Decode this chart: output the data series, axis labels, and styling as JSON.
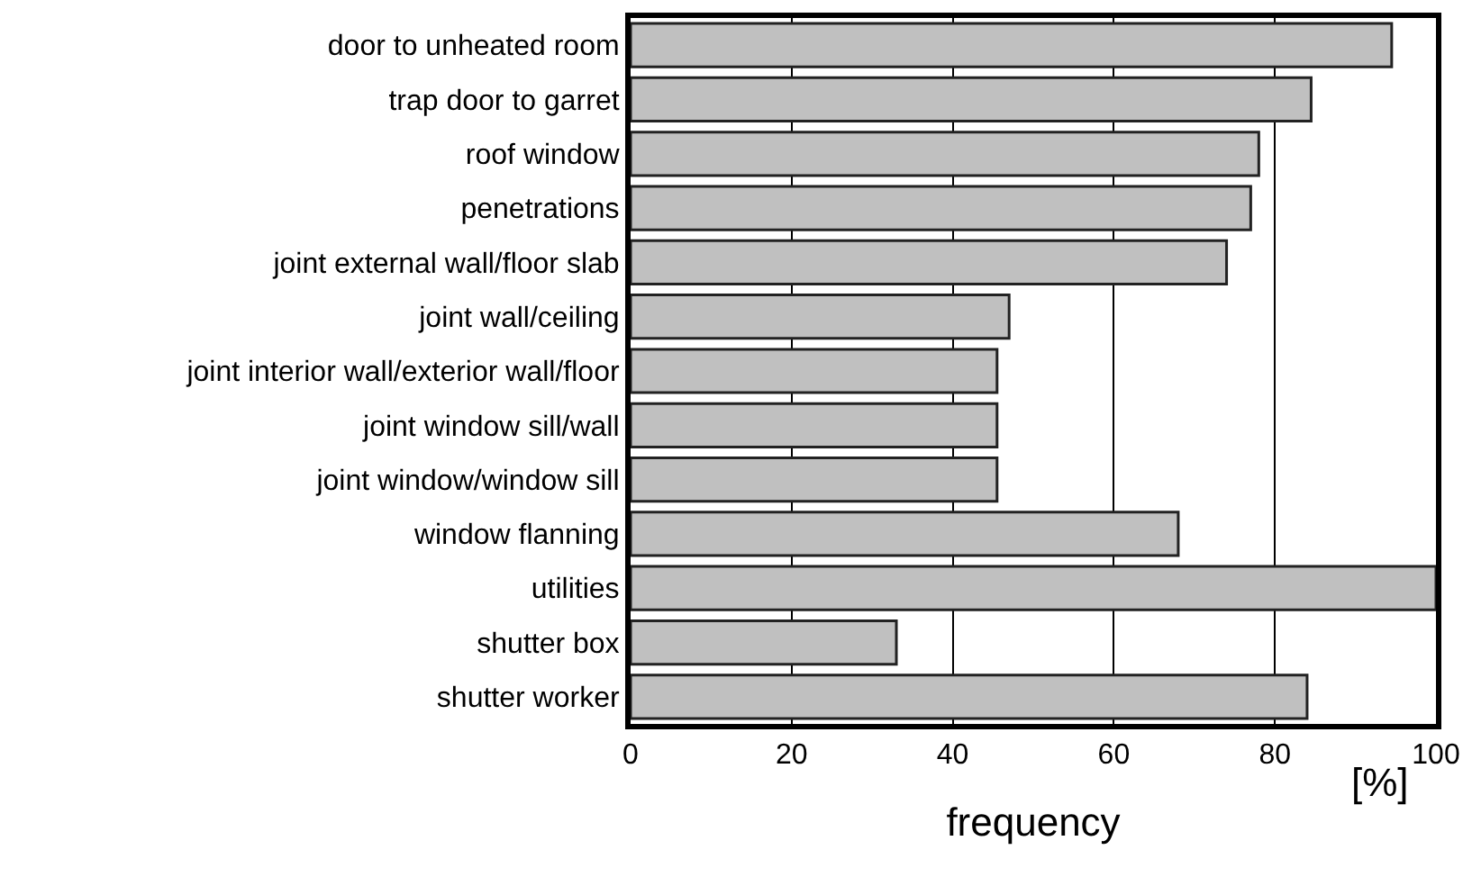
{
  "chart_data": {
    "type": "bar",
    "orientation": "horizontal",
    "xlabel": "frequency",
    "categories": [
      "door to unheated room",
      "trap door to garret",
      "roof window",
      "penetrations",
      "joint external wall/floor slab",
      "joint wall/ceiling",
      "joint interior wall/exterior wall/floor",
      "joint window sill/wall",
      "joint window/window sill",
      "window flanning",
      "utilities",
      "shutter box",
      "shutter worker"
    ],
    "series": [
      {
        "color": "#c0c0c0",
        "values": [
          94.5,
          84.5,
          78,
          77,
          74,
          47,
          45.5,
          45.5,
          45.5,
          68,
          100,
          33,
          84
        ]
      }
    ],
    "xlim": [
      0,
      100
    ],
    "xticks": [
      0,
      20,
      40,
      60,
      80,
      100
    ],
    "grid": "x",
    "annotations": [
      "[%]"
    ]
  }
}
